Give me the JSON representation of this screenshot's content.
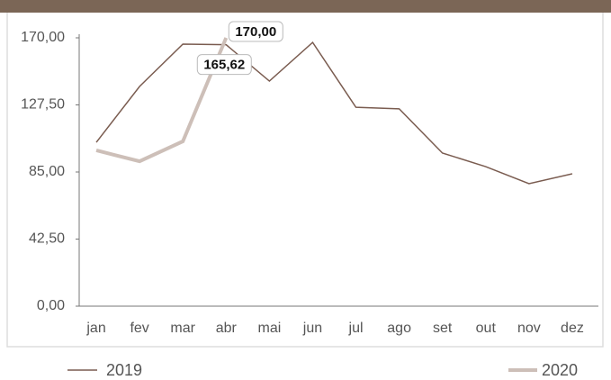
{
  "chart_data": {
    "type": "line",
    "categories": [
      "jan",
      "fev",
      "mar",
      "abr",
      "mai",
      "jun",
      "jul",
      "ago",
      "set",
      "out",
      "nov",
      "dez"
    ],
    "series": [
      {
        "name": "2019",
        "color": "#7a5c50",
        "values": [
          103.8,
          139.2,
          166,
          165.62,
          142.6,
          167.1,
          126,
          125,
          97,
          88.4,
          77.6,
          83.9
        ],
        "value_labels": [
          null,
          null,
          null,
          "165,62",
          null,
          null,
          null,
          null,
          null,
          null,
          null,
          null
        ]
      },
      {
        "name": "2020",
        "color": "#cdbfb8",
        "values": [
          98.7,
          91.8,
          104.4,
          170,
          null,
          null,
          null,
          null,
          null,
          null,
          null,
          null
        ],
        "value_labels": [
          null,
          null,
          null,
          "170,00",
          null,
          null,
          null,
          null,
          null,
          null,
          null,
          null
        ]
      }
    ],
    "ylim": [
      0,
      170
    ],
    "yticks": [
      {
        "value": 0,
        "label": "0,00"
      },
      {
        "value": 42.5,
        "label": "42,50"
      },
      {
        "value": 85,
        "label": "85,00"
      },
      {
        "value": 127.5,
        "label": "127,50"
      },
      {
        "value": 170,
        "label": "170,00"
      }
    ],
    "legend": "bottom"
  }
}
